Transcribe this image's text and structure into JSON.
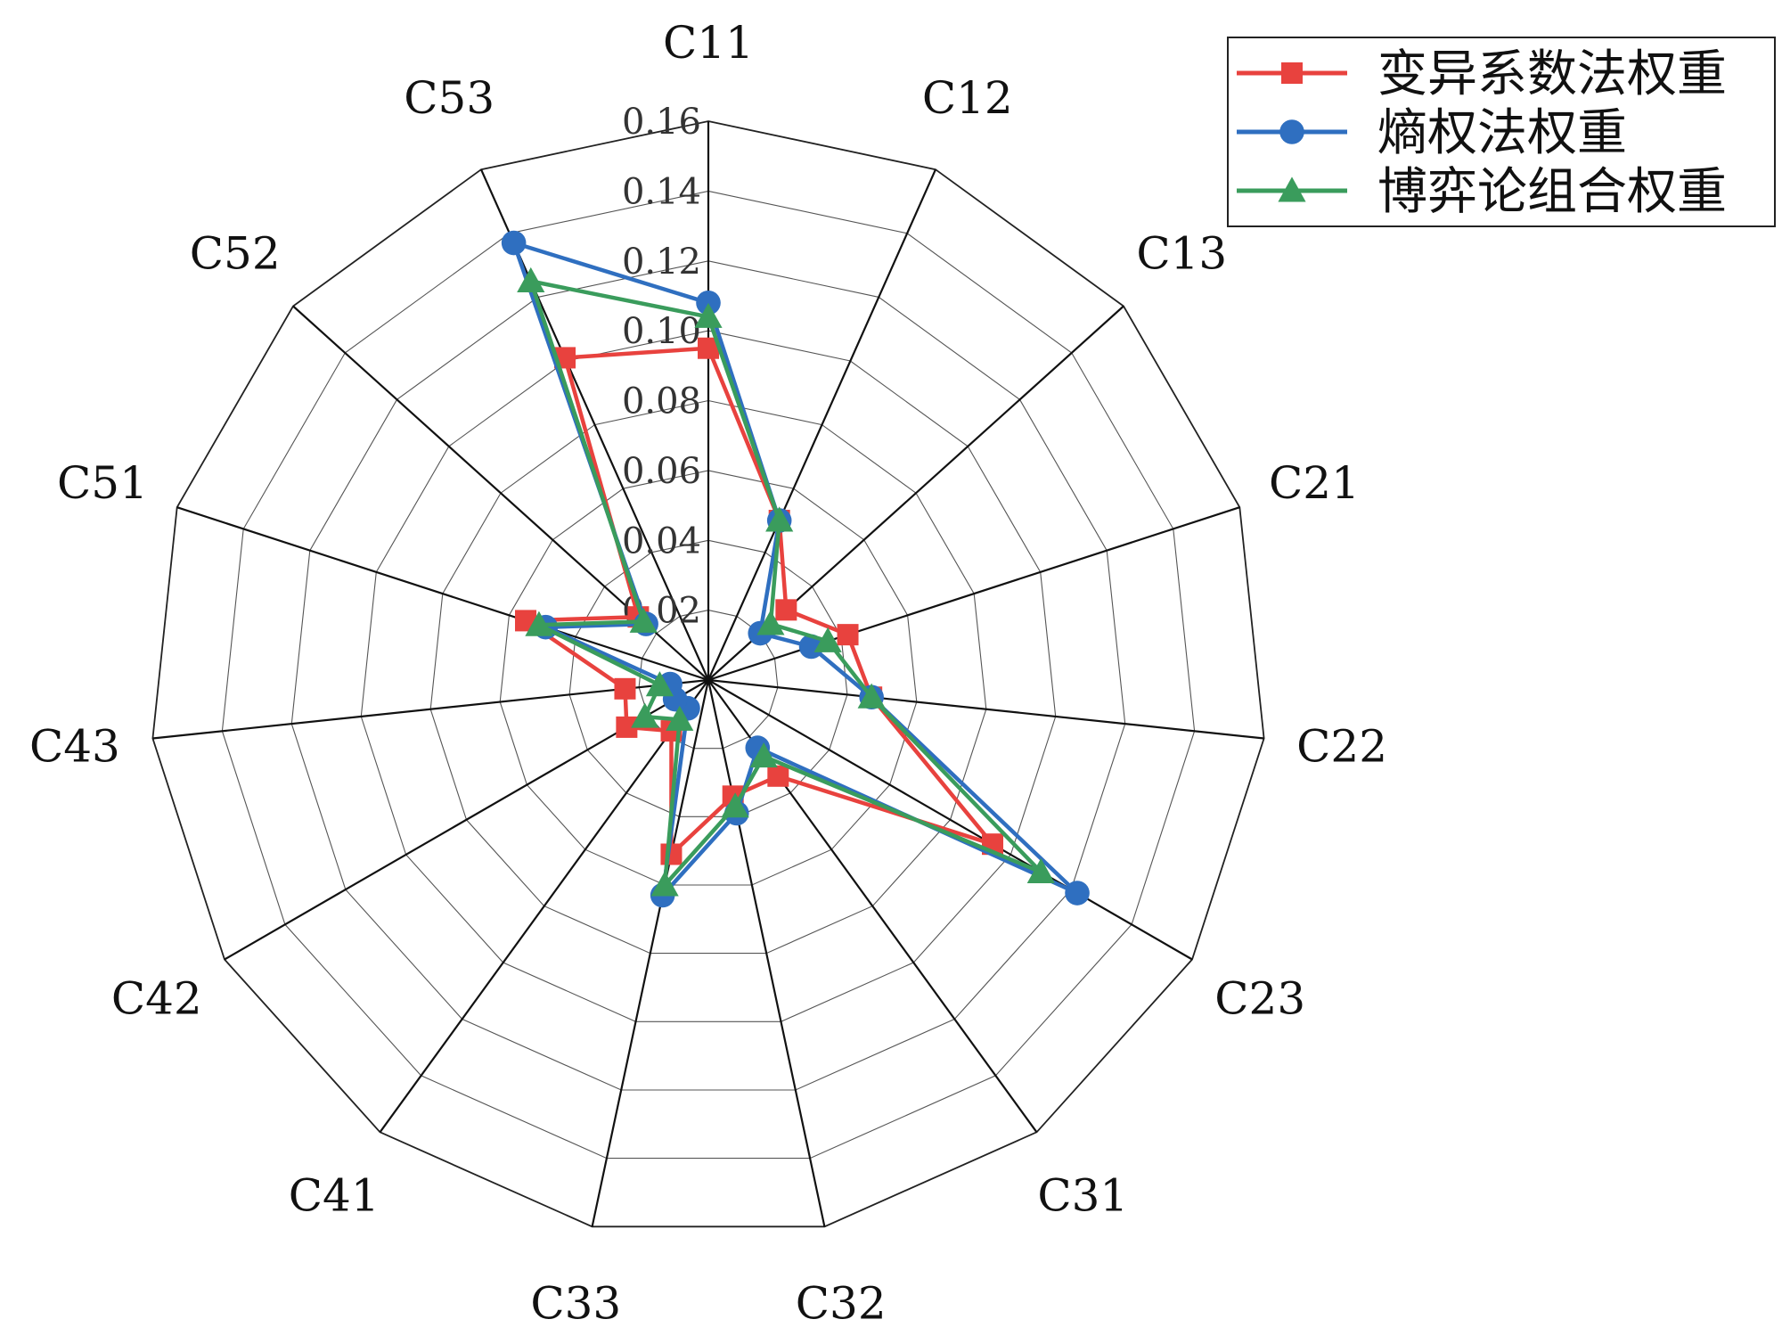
{
  "chart_data": {
    "type": "radar",
    "categories": [
      "C11",
      "C12",
      "C13",
      "C21",
      "C22",
      "C23",
      "C31",
      "C32",
      "C33",
      "C41",
      "C42",
      "C43",
      "C51",
      "C52",
      "C53"
    ],
    "radial_ticks": [
      "0.02",
      "0.04",
      "0.06",
      "0.08",
      "0.10",
      "0.12",
      "0.14",
      "0.16"
    ],
    "rlim": [
      0,
      0.16
    ],
    "grid": true,
    "legend_position": "top-right",
    "series": [
      {
        "name": "变异系数法权重",
        "color": "#e8423e",
        "marker": "square",
        "values": [
          0.095,
          0.05,
          0.03,
          0.042,
          0.047,
          0.094,
          0.034,
          0.034,
          0.051,
          0.018,
          0.027,
          0.024,
          0.055,
          0.027,
          0.101
        ]
      },
      {
        "name": "熵权法权重",
        "color": "#2f6fc0",
        "marker": "circle",
        "values": [
          0.108,
          0.05,
          0.02,
          0.031,
          0.047,
          0.122,
          0.024,
          0.039,
          0.063,
          0.01,
          0.011,
          0.011,
          0.049,
          0.024,
          0.137
        ]
      },
      {
        "name": "博弈论组合权重",
        "color": "#3a9c5c",
        "marker": "triangle",
        "values": [
          0.104,
          0.05,
          0.024,
          0.036,
          0.047,
          0.11,
          0.027,
          0.037,
          0.06,
          0.014,
          0.021,
          0.014,
          0.051,
          0.025,
          0.125
        ]
      }
    ]
  }
}
